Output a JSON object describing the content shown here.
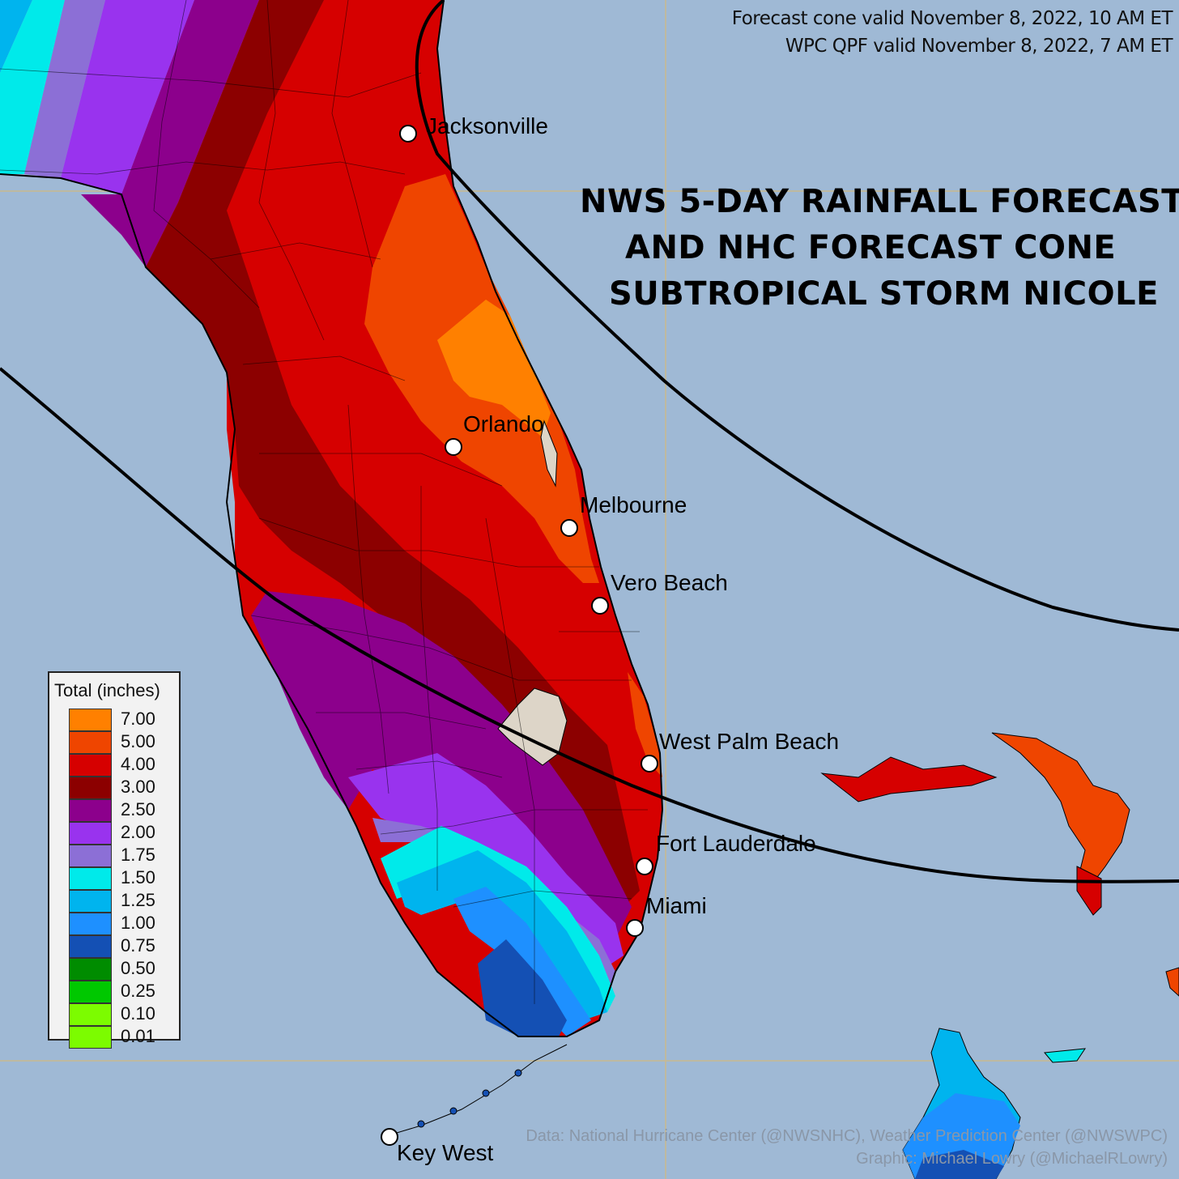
{
  "validity": {
    "cone": "Forecast cone valid November 8, 2022, 10 AM ET",
    "qpf": "WPC QPF valid November 8, 2022, 7 AM ET"
  },
  "title": {
    "line1": "NWS 5-DAY RAINFALL FORECAST",
    "line2": "AND NHC FORECAST CONE",
    "line3": "SUBTROPICAL STORM NICOLE"
  },
  "cities": [
    {
      "name": "Jacksonville"
    },
    {
      "name": "Orlando"
    },
    {
      "name": "Melbourne"
    },
    {
      "name": "Vero Beach"
    },
    {
      "name": "West Palm Beach"
    },
    {
      "name": "Fort Lauderdale"
    },
    {
      "name": "Miami"
    },
    {
      "name": "Key West"
    }
  ],
  "legend": {
    "title": "Total (inches)",
    "items": [
      {
        "value": "7.00",
        "color": "#ff8000"
      },
      {
        "value": "5.00",
        "color": "#ef4500"
      },
      {
        "value": "4.00",
        "color": "#d60000"
      },
      {
        "value": "3.00",
        "color": "#8c0000"
      },
      {
        "value": "2.50",
        "color": "#8c008c"
      },
      {
        "value": "2.00",
        "color": "#9933ee"
      },
      {
        "value": "1.75",
        "color": "#8c6fd6"
      },
      {
        "value": "1.50",
        "color": "#00eaea"
      },
      {
        "value": "1.25",
        "color": "#00b4ee"
      },
      {
        "value": "1.00",
        "color": "#1e90ff"
      },
      {
        "value": "0.75",
        "color": "#1450b4"
      },
      {
        "value": "0.50",
        "color": "#008c00"
      },
      {
        "value": "0.25",
        "color": "#00c800"
      },
      {
        "value": "0.10",
        "color": "#7cfc00"
      },
      {
        "value": "0.01",
        "color": "#7cfc00"
      }
    ]
  },
  "credits": {
    "line1": "Data: National Hurricane Center (@NWSNHC), Weather Prediction Center (@NWSWPC)",
    "line2": "Graphic: Michael Lowry (@MichaelRLowry)"
  },
  "colors": {
    "water": "#9fb9d5",
    "lake": "#ddd5c8",
    "cone": "#000000"
  }
}
